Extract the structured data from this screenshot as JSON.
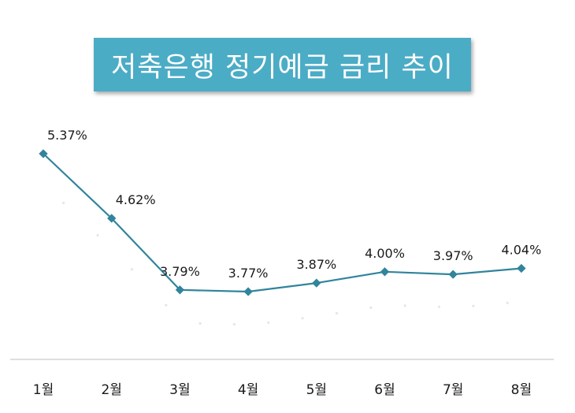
{
  "chart_data": {
    "type": "line",
    "title": "저축은행 정기예금 금리 추이",
    "categories": [
      "1월",
      "2월",
      "3월",
      "4월",
      "5월",
      "6월",
      "7월",
      "8월"
    ],
    "series": [
      {
        "values": [
          5.37,
          4.62,
          3.79,
          3.77,
          3.87,
          4.0,
          3.97,
          4.04
        ],
        "labels": [
          "5.37%",
          "4.62%",
          "3.79%",
          "3.77%",
          "3.87%",
          "4.00%",
          "3.97%",
          "4.04%"
        ]
      }
    ],
    "xlabel": "",
    "ylabel": "",
    "ylim": [
      3.0,
      5.6
    ],
    "grid": false,
    "legend": "none",
    "line_color": "#31849b",
    "marker": "diamond"
  },
  "colors": {
    "title_bg": "#4bacc6",
    "title_text": "#ffffff",
    "line": "#31849b",
    "axis": "#bfbfbf"
  }
}
